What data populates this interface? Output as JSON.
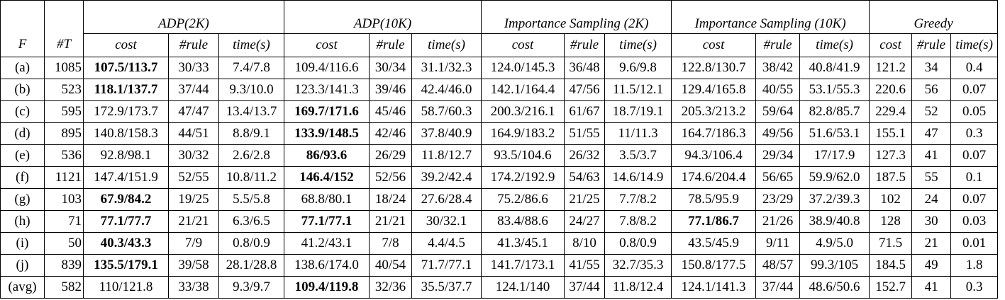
{
  "table": {
    "f_label": "F",
    "t_label": "#T",
    "groups": [
      "ADP(2K)",
      "ADP(10K)",
      "Importance Sampling (2K)",
      "Importance Sampling (10K)",
      "Greedy"
    ],
    "columns": [
      "cost",
      "#rule",
      "time(s)",
      "cost",
      "#rule",
      "time(s)",
      "cost",
      "#rule",
      "time(s)",
      "cost",
      "#rule",
      "time(s)",
      "cost",
      "#rule",
      "time(s)"
    ],
    "rows": [
      [
        "(a)",
        "1085",
        "107.5/113.7",
        "30/33",
        "7.4/7.8",
        "109.4/116.6",
        "30/34",
        "31.1/32.3",
        "124.0/145.3",
        "36/48",
        "9.6/9.8",
        "122.8/130.7",
        "38/42",
        "40.8/41.9",
        "121.2",
        "34",
        "0.4"
      ],
      [
        "(b)",
        "523",
        "118.1/137.7",
        "37/44",
        "9.3/10.0",
        "123.3/141.3",
        "39/46",
        "42.4/46.0",
        "142.1/164.4",
        "47/56",
        "11.5/12.1",
        "129.4/165.8",
        "40/55",
        "53.1/55.3",
        "220.6",
        "56",
        "0.07"
      ],
      [
        "(c)",
        "595",
        "172.9/173.7",
        "47/47",
        "13.4/13.7",
        "169.7/171.6",
        "45/46",
        "58.7/60.3",
        "200.3/216.1",
        "61/67",
        "18.7/19.1",
        "205.3/213.2",
        "59/64",
        "82.8/85.7",
        "229.4",
        "52",
        "0.05"
      ],
      [
        "(d)",
        "895",
        "140.8/158.3",
        "44/51",
        "8.8/9.1",
        "133.9/148.5",
        "42/46",
        "37.8/40.9",
        "164.9/183.2",
        "51/55",
        "11/11.3",
        "164.7/186.3",
        "49/56",
        "51.6/53.1",
        "155.1",
        "47",
        "0.3"
      ],
      [
        "(e)",
        "536",
        "92.8/98.1",
        "30/32",
        "2.6/2.8",
        "86/93.6",
        "26/29",
        "11.8/12.7",
        "93.5/104.6",
        "26/32",
        "3.5/3.7",
        "94.3/106.4",
        "29/34",
        "17/17.9",
        "127.3",
        "41",
        "0.07"
      ],
      [
        "(f)",
        "1121",
        "147.4/151.9",
        "52/55",
        "10.8/11.2",
        "146.4/152",
        "52/56",
        "39.2/42.4",
        "174.2/192.9",
        "54/63",
        "14.6/14.9",
        "174.6/204.4",
        "56/65",
        "59.9/62.0",
        "187.5",
        "55",
        "0.1"
      ],
      [
        "(g)",
        "103",
        "67.9/84.2",
        "19/25",
        "5.5/5.8",
        "68.8/80.1",
        "18/24",
        "27.6/28.4",
        "75.2/86.6",
        "21/25",
        "7.7/8.2",
        "78.5/95.9",
        "23/29",
        "37.2/39.3",
        "102",
        "24",
        "0.07"
      ],
      [
        "(h)",
        "71",
        "77.1/77.7",
        "21/21",
        "6.3/6.5",
        "77.1/77.1",
        "21/21",
        "30/32.1",
        "83.4/88.6",
        "24/27",
        "7.8/8.2",
        "77.1/86.7",
        "21/26",
        "38.9/40.8",
        "128",
        "30",
        "0.03"
      ],
      [
        "(i)",
        "50",
        "40.3/43.3",
        "7/9",
        "0.8/0.9",
        "41.2/43.1",
        "7/8",
        "4.4/4.5",
        "41.3/45.1",
        "8/10",
        "0.8/0.9",
        "43.5/45.9",
        "9/11",
        "4.9/5.0",
        "71.5",
        "21",
        "0.01"
      ],
      [
        "(j)",
        "839",
        "135.5/179.1",
        "39/58",
        "28.1/28.8",
        "138.6/174.0",
        "40/54",
        "71.7/77.1",
        "141.7/173.1",
        "41/55",
        "32.7/35.3",
        "150.8/177.5",
        "48/57",
        "99.3/105",
        "184.5",
        "49",
        "1.8"
      ],
      [
        "(avg)",
        "582",
        "110/121.8",
        "33/38",
        "9.3/9.7",
        "109.4/119.8",
        "32/36",
        "35.5/37.7",
        "124.1/140",
        "37/44",
        "11.8/12.4",
        "124.1/141.3",
        "37/44",
        "48.6/50.6",
        "152.7",
        "41",
        "0.3"
      ]
    ],
    "bold_cells": [
      [
        0,
        2
      ],
      [
        1,
        2
      ],
      [
        2,
        5
      ],
      [
        3,
        5
      ],
      [
        4,
        5
      ],
      [
        5,
        5
      ],
      [
        6,
        2
      ],
      [
        7,
        2
      ],
      [
        7,
        5
      ],
      [
        7,
        11
      ],
      [
        8,
        2
      ],
      [
        9,
        2
      ],
      [
        10,
        5
      ]
    ]
  }
}
